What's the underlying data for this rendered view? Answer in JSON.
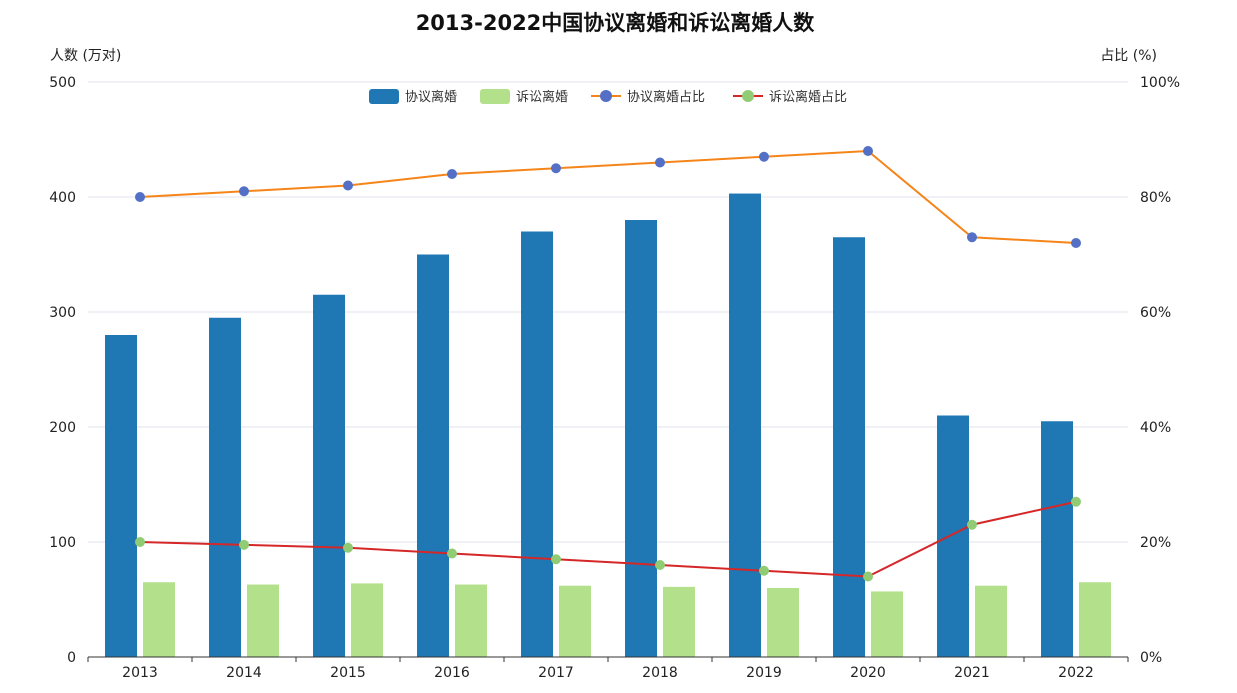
{
  "chart_data": {
    "type": "bar",
    "title": "2013-2022中国协议离婚和诉讼离婚人数",
    "ylabel_left": "人数 (万对)",
    "ylabel_right": "占比 (%)",
    "ylim_left": [
      0,
      500
    ],
    "ylim_right": [
      0,
      100
    ],
    "yticks_left": [
      "0",
      "100",
      "200",
      "300",
      "400",
      "500"
    ],
    "yticks_right": [
      "0%",
      "20%",
      "40%",
      "60%",
      "80%",
      "100%"
    ],
    "categories": [
      "2013",
      "2014",
      "2015",
      "2016",
      "2017",
      "2018",
      "2019",
      "2020",
      "2021",
      "2022"
    ],
    "grid": true,
    "legend_position": "top-center",
    "series": [
      {
        "name": "协议离婚",
        "type": "bar",
        "axis": "left",
        "color": "#1f77b4",
        "values": [
          280,
          295,
          315,
          350,
          370,
          380,
          403,
          365,
          210,
          205
        ]
      },
      {
        "name": "诉讼离婚",
        "type": "bar",
        "axis": "left",
        "color": "#b3e08a",
        "values": [
          65,
          63,
          64,
          63,
          62,
          61,
          60,
          57,
          62,
          65
        ]
      },
      {
        "name": "协议离婚占比",
        "type": "line",
        "axis": "right",
        "color": "#f58518",
        "marker_color": "#5470c6",
        "values": [
          80,
          81,
          82,
          84,
          85,
          86,
          87,
          88,
          73,
          72
        ]
      },
      {
        "name": "诉讼离婚占比",
        "type": "line",
        "axis": "right",
        "color": "#d62728",
        "marker_color": "#91cc75",
        "values": [
          20,
          19.5,
          19,
          18,
          17,
          16,
          15,
          14,
          23,
          27
        ]
      }
    ]
  }
}
